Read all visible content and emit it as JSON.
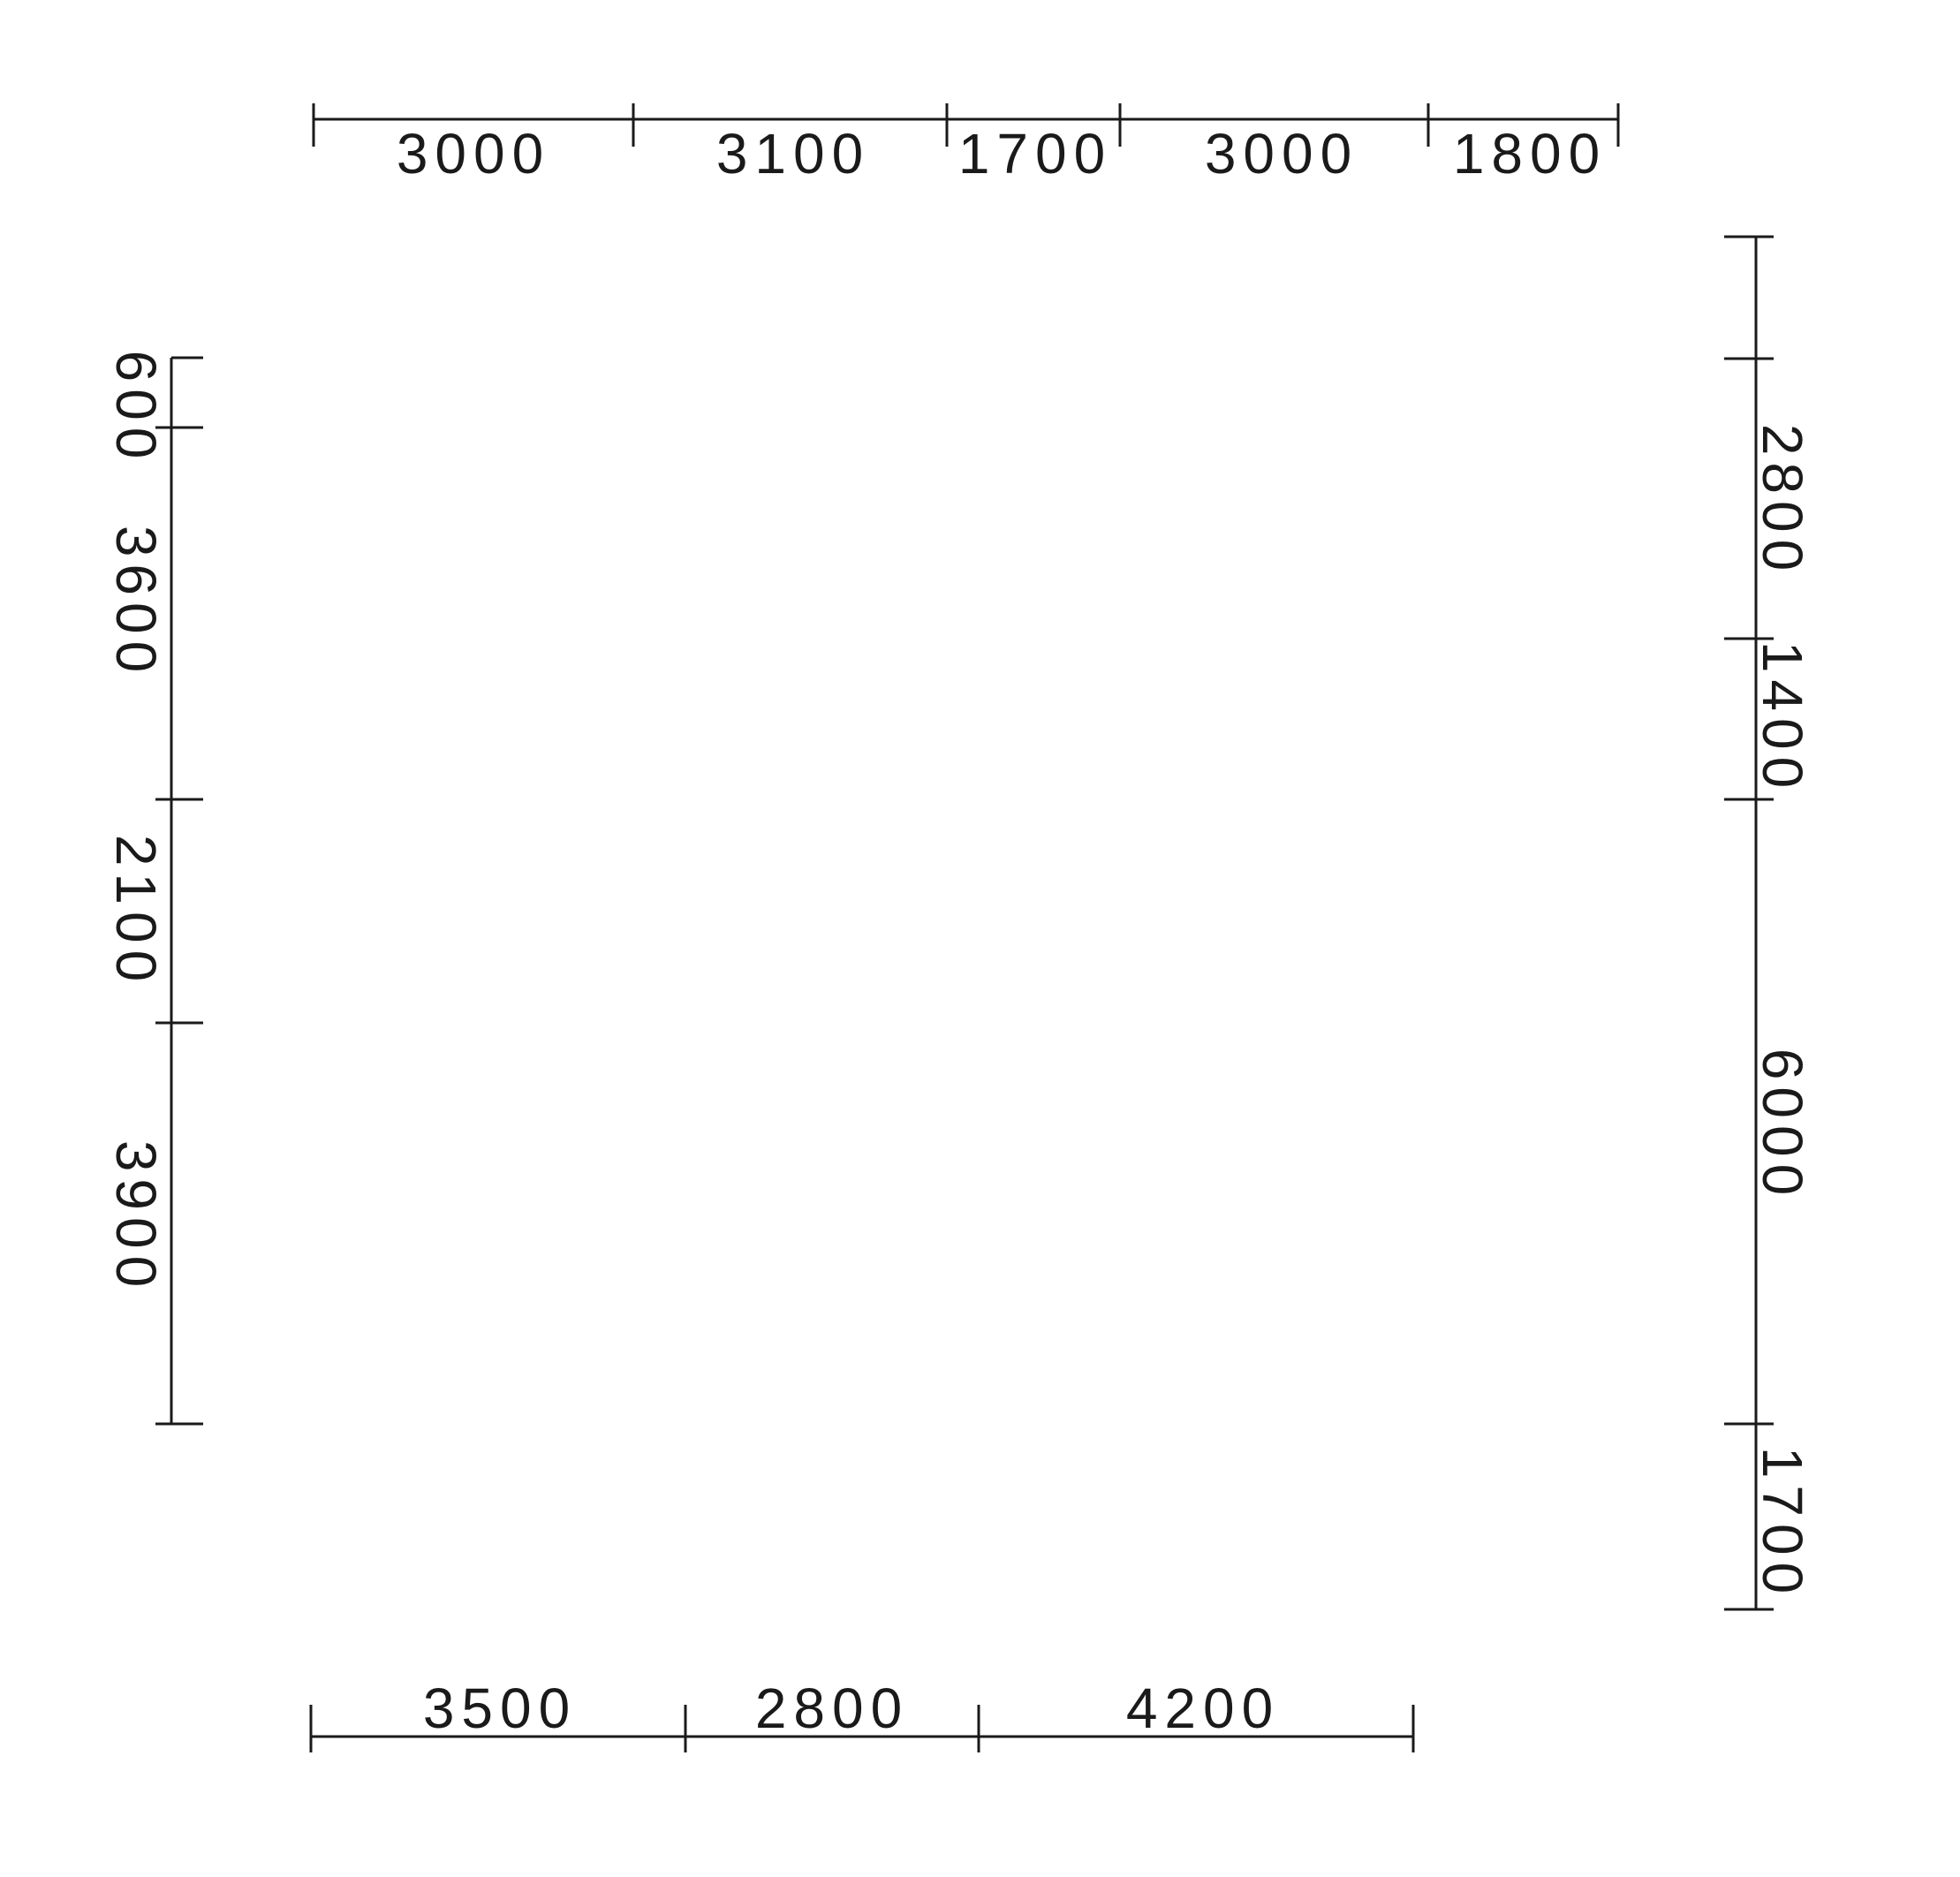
{
  "diagram": {
    "stroke_color": "#1a1a1a",
    "background": "#ffffff",
    "top_dimension_chain": [
      "3000",
      "3100",
      "1700",
      "3000",
      "1800"
    ],
    "bottom_dimension_chain": [
      "3500",
      "2800",
      "4200"
    ],
    "left_dimension_chain": [
      "600",
      "3600",
      "2100",
      "3900"
    ],
    "right_dimension_chain": [
      "2800",
      "1400",
      "6000",
      "1700"
    ]
  }
}
